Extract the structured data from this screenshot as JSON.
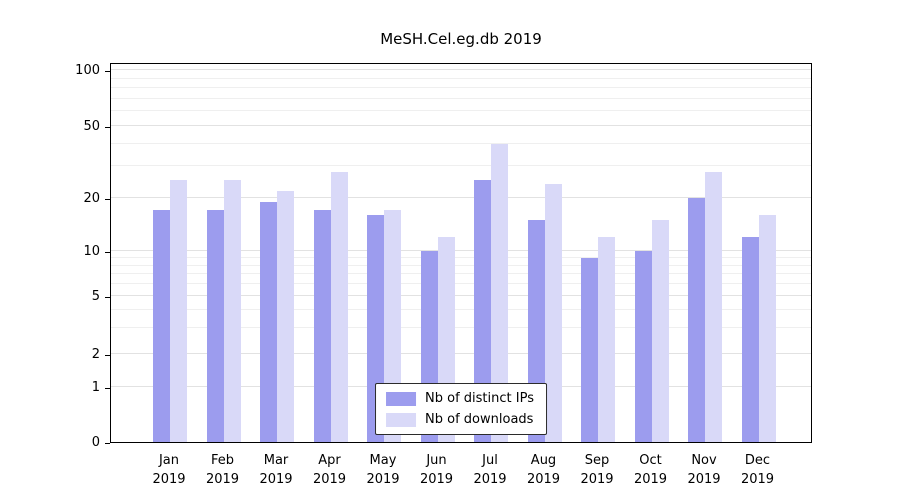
{
  "chart_data": {
    "type": "bar",
    "title": "MeSH.Cel.eg.db 2019",
    "categories": [
      "Jan 2019",
      "Feb 2019",
      "Mar 2019",
      "Apr 2019",
      "May 2019",
      "Jun 2019",
      "Jul 2019",
      "Aug 2019",
      "Sep 2019",
      "Oct 2019",
      "Nov 2019",
      "Dec 2019"
    ],
    "series": [
      {
        "name": "Nb of distinct IPs",
        "color": "#9c9cee",
        "values": [
          17,
          17,
          19,
          17,
          16,
          10,
          25,
          15,
          9,
          10,
          20,
          12
        ]
      },
      {
        "name": "Nb of downloads",
        "color": "#d9d9f8",
        "values": [
          25,
          25,
          22,
          28,
          17,
          12,
          40,
          24,
          12,
          15,
          28,
          16
        ]
      }
    ],
    "yticks": [
      0,
      1,
      2,
      5,
      10,
      20,
      50,
      100
    ],
    "ylim": [
      0,
      100
    ],
    "yscale": "log-like",
    "grid": "horizontal",
    "legend_position": "bottom-center-inside"
  }
}
